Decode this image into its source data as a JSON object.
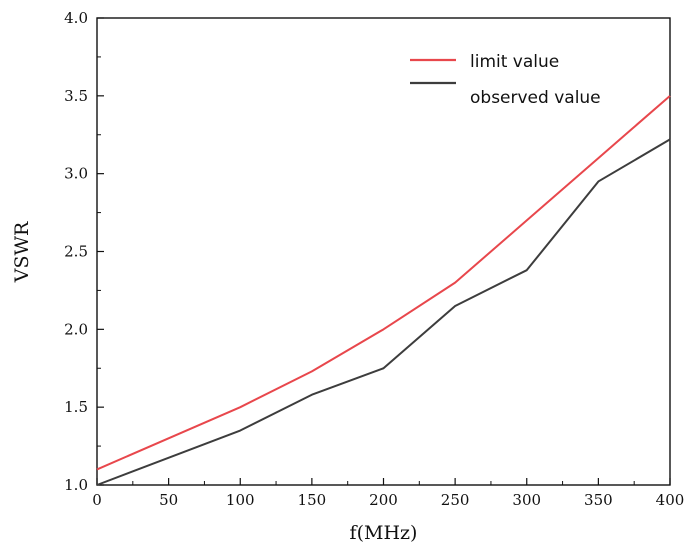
{
  "chart_data": {
    "type": "line",
    "title": "",
    "xlabel": "f(MHz)",
    "ylabel": "VSWR",
    "xlim": [
      0,
      400
    ],
    "ylim": [
      1.0,
      4.0
    ],
    "x_ticks": [
      0,
      50,
      100,
      150,
      200,
      250,
      300,
      350,
      400
    ],
    "x_tick_labels": [
      "0",
      "50",
      "100",
      "150",
      "200",
      "250",
      "300",
      "350",
      "400"
    ],
    "y_ticks": [
      1.0,
      1.5,
      2.0,
      2.5,
      3.0,
      3.5,
      4.0
    ],
    "y_tick_labels": [
      "1.0",
      "1.5",
      "2.0",
      "2.5",
      "3.0",
      "3.5",
      "4.0"
    ],
    "grid": false,
    "legend_position": "top-right",
    "series": [
      {
        "name": "limit value",
        "color": "#e8474c",
        "x": [
          0,
          100,
          150,
          200,
          250,
          300,
          350,
          400
        ],
        "y": [
          1.1,
          1.5,
          1.73,
          2.0,
          2.3,
          2.7,
          3.1,
          3.5
        ]
      },
      {
        "name": "observed value",
        "color": "#3d3d3d",
        "x": [
          0,
          100,
          150,
          200,
          250,
          300,
          350,
          400
        ],
        "y": [
          1.0,
          1.35,
          1.58,
          1.75,
          2.15,
          2.38,
          2.95,
          3.22
        ]
      }
    ]
  }
}
